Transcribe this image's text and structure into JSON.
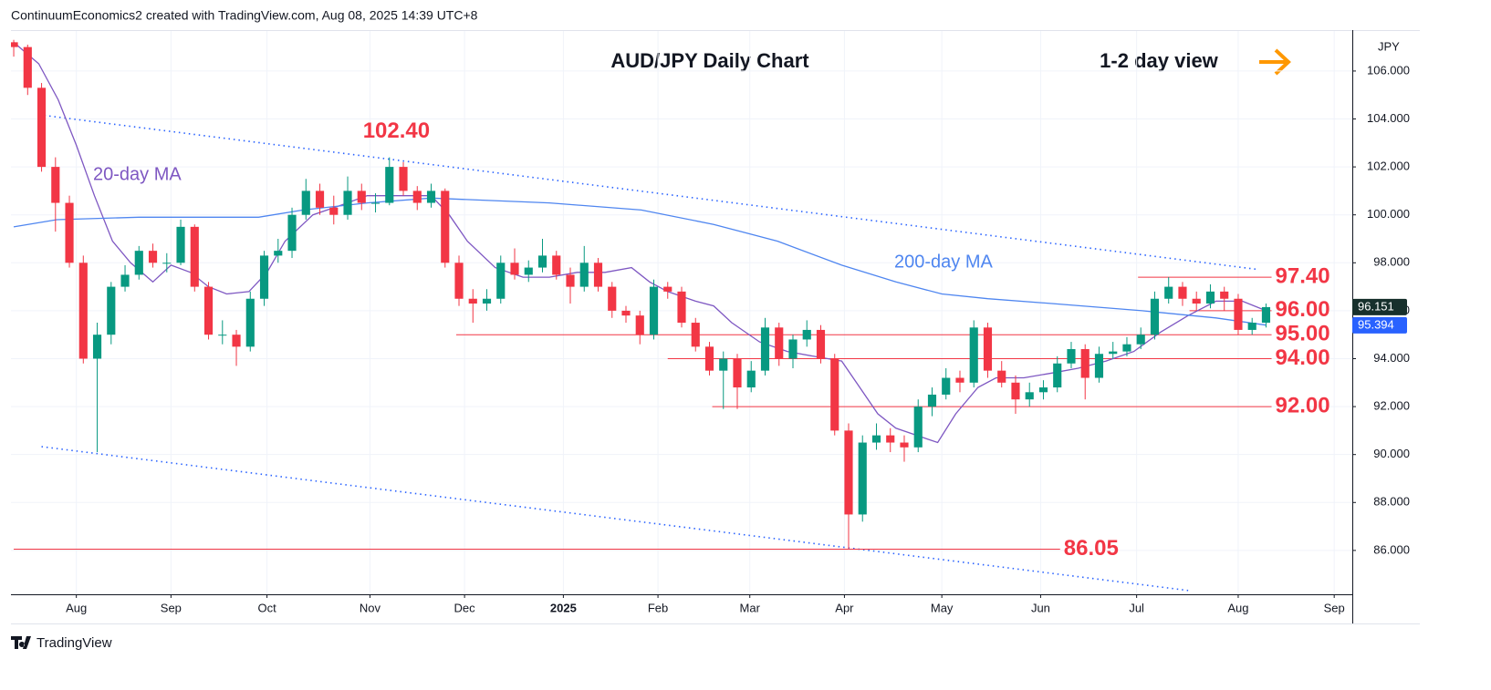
{
  "header": "ContinuumEconomics2 created with TradingView.com, Aug 08, 2025 14:39 UTC+8",
  "footer": "TradingView",
  "chart_data": {
    "type": "candlestick",
    "title": "AUD/JPY Daily Chart",
    "subtitle": "1-2 day view",
    "y_axis_label": "JPY",
    "up_color": "#089981",
    "down_color": "#f23645",
    "candles": {
      "open": [
        107.2,
        107,
        105.3,
        102,
        100.5,
        98,
        94,
        95,
        97,
        97.5,
        98.5,
        98,
        98,
        99.5,
        97,
        95,
        95,
        94.5,
        96.5,
        98.3,
        98.5,
        100,
        101,
        100.3,
        100,
        101,
        100.5,
        100.5,
        102,
        101,
        100.5,
        101,
        98,
        96.5,
        96.3,
        96.5,
        98,
        97.5,
        97.8,
        98.3,
        97.5,
        97,
        98,
        97,
        96,
        95.8,
        95,
        97,
        96.8,
        95.5,
        94.5,
        93.5,
        94,
        92.8,
        93.5,
        95.3,
        94,
        94.8,
        95.2,
        94,
        91,
        87.5,
        90.5,
        90.8,
        90.5,
        90.3,
        92,
        92.5,
        93.2,
        93,
        95.3,
        93.5,
        93,
        92.3,
        92.6,
        92.8,
        93.8,
        94.4,
        93.2,
        94.2,
        94.3,
        94.6,
        95,
        96.5,
        97,
        96.5,
        96.3,
        96.8,
        96.5,
        95.2,
        95.5
      ],
      "high": [
        107.3,
        107.1,
        105.5,
        102.4,
        100.8,
        98.3,
        95.5,
        97.2,
        97.9,
        98.7,
        98.8,
        98.4,
        99.8,
        99.6,
        97.2,
        95.6,
        95.2,
        96.8,
        98.5,
        99,
        100.3,
        101.5,
        101.3,
        100.8,
        101.6,
        101.3,
        100.9,
        102.4,
        102.2,
        101.2,
        101.3,
        101.1,
        98.3,
        96.9,
        96.9,
        98.3,
        98.6,
        98.1,
        99,
        98.5,
        97.8,
        98.7,
        98.2,
        97.2,
        96.2,
        96,
        97.3,
        97.2,
        97,
        95.7,
        94.7,
        94.3,
        94.2,
        93.9,
        95.7,
        95.5,
        95,
        95.6,
        95.4,
        94.2,
        91.3,
        90.8,
        91.3,
        91.1,
        90.8,
        92.3,
        92.8,
        93.6,
        93.5,
        95.6,
        95.5,
        93.9,
        93.3,
        93,
        93.1,
        94.1,
        94.7,
        94.6,
        94.5,
        94.7,
        94.9,
        95.3,
        96.8,
        97.4,
        97.2,
        96.8,
        97.1,
        97,
        96.7,
        95.7,
        96.3
      ],
      "low": [
        106.6,
        105,
        101.8,
        99.3,
        97.8,
        93.8,
        90.1,
        94.6,
        96.8,
        97.3,
        97.8,
        97.6,
        97.9,
        96.8,
        94.8,
        94.6,
        93.7,
        94.3,
        96.2,
        98,
        98.2,
        99.8,
        100,
        99.6,
        99.8,
        100.2,
        100.1,
        100.4,
        100.8,
        100.2,
        100.3,
        97.8,
        96.2,
        95.5,
        96,
        96.3,
        97.3,
        97.2,
        97.6,
        97.3,
        96.3,
        96.8,
        96.8,
        95.7,
        95.5,
        94.6,
        94.8,
        96.5,
        95.3,
        94.3,
        93.3,
        91.9,
        91.9,
        92.6,
        93.3,
        93.7,
        93.6,
        94.5,
        93.8,
        90.8,
        86.05,
        87.2,
        90.2,
        90.1,
        89.7,
        90.1,
        91.6,
        92.3,
        92.6,
        92.8,
        93.2,
        92.8,
        91.7,
        92,
        92.3,
        92.6,
        93.6,
        92.3,
        93,
        94,
        94.1,
        94.4,
        94.8,
        96.3,
        96.2,
        96,
        96.1,
        96,
        95,
        95,
        95.3
      ],
      "close": [
        107,
        105.3,
        102,
        100.5,
        98,
        94,
        95,
        97,
        97.5,
        98.5,
        98,
        98,
        99.5,
        97,
        95,
        95,
        94.5,
        96.5,
        98.3,
        98.5,
        100,
        101,
        100.3,
        100,
        101,
        100.5,
        100.5,
        102,
        101,
        100.5,
        101,
        98,
        96.5,
        96.3,
        96.5,
        98,
        97.5,
        97.8,
        98.3,
        97.5,
        97,
        98,
        97,
        96,
        95.8,
        95,
        97,
        96.8,
        95.5,
        94.5,
        93.5,
        94,
        92.8,
        93.5,
        95.3,
        94,
        94.8,
        95.2,
        94,
        91,
        87.5,
        90.5,
        90.8,
        90.5,
        90.3,
        92,
        92.5,
        93.2,
        93,
        95.3,
        93.5,
        93,
        92.3,
        92.6,
        92.8,
        93.8,
        94.4,
        93.2,
        94.2,
        94.3,
        94.6,
        95,
        96.5,
        97,
        96.5,
        96.3,
        96.8,
        96.5,
        95.2,
        95.5,
        96.151
      ]
    },
    "series": [
      {
        "name": "20-day MA",
        "color": "#7e57c2",
        "x": [
          0,
          1.8,
          3.2,
          4.5,
          5.8,
          7.1,
          8.4,
          10,
          11.3,
          12.7,
          14,
          15.3,
          16.9,
          18.2,
          19.5,
          21.5,
          23.5,
          25.4,
          27.4,
          30,
          31.3,
          32.6,
          34.6,
          36.6,
          38.5,
          40.5,
          42.5,
          44.4,
          45.7,
          47,
          49,
          50.3,
          51.6,
          53.6,
          55.6,
          57.5,
          59.5,
          60.8,
          62.1,
          63.4,
          65.4,
          66.4,
          67.7,
          69.3,
          70.6,
          72.6,
          74.6,
          76.5,
          78.5,
          80.5,
          82.4,
          84.4,
          86.4,
          88.3,
          90
        ],
        "values": [
          107.2,
          106.3,
          104.8,
          102.9,
          100.8,
          98.9,
          98,
          97.2,
          97.9,
          97.6,
          97,
          96.7,
          96.8,
          97.6,
          98.9,
          100,
          100.4,
          100.8,
          100.8,
          100.8,
          100,
          98.9,
          97.8,
          97.4,
          97.4,
          97.6,
          97.6,
          97.8,
          97.2,
          96.8,
          96.4,
          96.2,
          95.5,
          94.7,
          94.3,
          94.1,
          93.9,
          92.8,
          91.7,
          91.1,
          90.7,
          90.5,
          91.7,
          92.8,
          93.2,
          93.2,
          93.4,
          93.6,
          93.9,
          94.3,
          95.1,
          95.8,
          96.4,
          96.4,
          96
        ]
      },
      {
        "name": "200-day MA",
        "color": "#4f86f0",
        "x": [
          0,
          3.1,
          9,
          17.6,
          20.8,
          25.4,
          30,
          38.5,
          45.1,
          50.3,
          54.9,
          59.5,
          63.4,
          66.7,
          70,
          74.6,
          81.1,
          86.4,
          90
        ],
        "values": [
          99.5,
          99.8,
          99.9,
          99.9,
          100.2,
          100.5,
          100.7,
          100.5,
          100.2,
          99.6,
          98.9,
          97.9,
          97.2,
          96.7,
          96.5,
          96.3,
          96,
          95.7,
          95.4
        ]
      }
    ],
    "trendlines": [
      {
        "x": [
          2.2,
          89.3
        ],
        "values": [
          104.15,
          97.73
        ],
        "color": "#2962ff"
      },
      {
        "x": [
          2,
          84.4
        ],
        "values": [
          90.33,
          84.33
        ],
        "color": "#2962ff"
      }
    ],
    "levels": [
      {
        "value": 97.4,
        "label": "97.40",
        "start": 80.8,
        "end": 90.4
      },
      {
        "value": 96,
        "label": "96.00",
        "start": 84.5,
        "end": 90.4
      },
      {
        "value": 95,
        "label": "95.00",
        "start": 31.8,
        "end": 90.4
      },
      {
        "value": 94,
        "label": "94.00",
        "start": 47,
        "end": 90.4
      },
      {
        "value": 92,
        "label": "92.00",
        "start": 50.2,
        "end": 90.4
      },
      {
        "value": 86.05,
        "label": "86.05",
        "start": 0,
        "end": 75.2
      }
    ],
    "level_color": "#f23645",
    "annotations": [
      {
        "text": "102.40",
        "value": 102.4,
        "x": 27.5
      }
    ],
    "price_tags": [
      {
        "value": 96.151,
        "label": "96.151",
        "color": "#17302c"
      },
      {
        "value": 95.394,
        "label": "95.394",
        "color": "#2962ff"
      }
    ],
    "xlim": [
      -0.2,
      96.2
    ],
    "xticks": [
      {
        "value": 4.5,
        "label": "Aug"
      },
      {
        "value": 11.3,
        "label": "Sep"
      },
      {
        "value": 18.2,
        "label": "Oct"
      },
      {
        "value": 25.6,
        "label": "Nov"
      },
      {
        "value": 32.4,
        "label": "Dec"
      },
      {
        "value": 39.5,
        "label": "2025"
      },
      {
        "value": 46.3,
        "label": "Feb"
      },
      {
        "value": 52.9,
        "label": "Mar"
      },
      {
        "value": 59.7,
        "label": "Apr"
      },
      {
        "value": 66.7,
        "label": "May"
      },
      {
        "value": 73.8,
        "label": "Jun"
      },
      {
        "value": 80.7,
        "label": "Jul"
      },
      {
        "value": 88,
        "label": "Aug"
      },
      {
        "value": 94.9,
        "label": "Sep"
      }
    ],
    "ylim": [
      84.17,
      107.67
    ],
    "yticks": [
      {
        "value": 86,
        "label": "86.000"
      },
      {
        "value": 88,
        "label": "88.000"
      },
      {
        "value": 90,
        "label": "90.000"
      },
      {
        "value": 92,
        "label": "92.000"
      },
      {
        "value": 94,
        "label": "94.000"
      },
      {
        "value": 96,
        "label": "96.000"
      },
      {
        "value": 98,
        "label": "98.000"
      },
      {
        "value": 100,
        "label": "100.000"
      },
      {
        "value": 102,
        "label": "102.000"
      },
      {
        "value": 104,
        "label": "104.000"
      },
      {
        "value": 106,
        "label": "106.000"
      }
    ]
  }
}
